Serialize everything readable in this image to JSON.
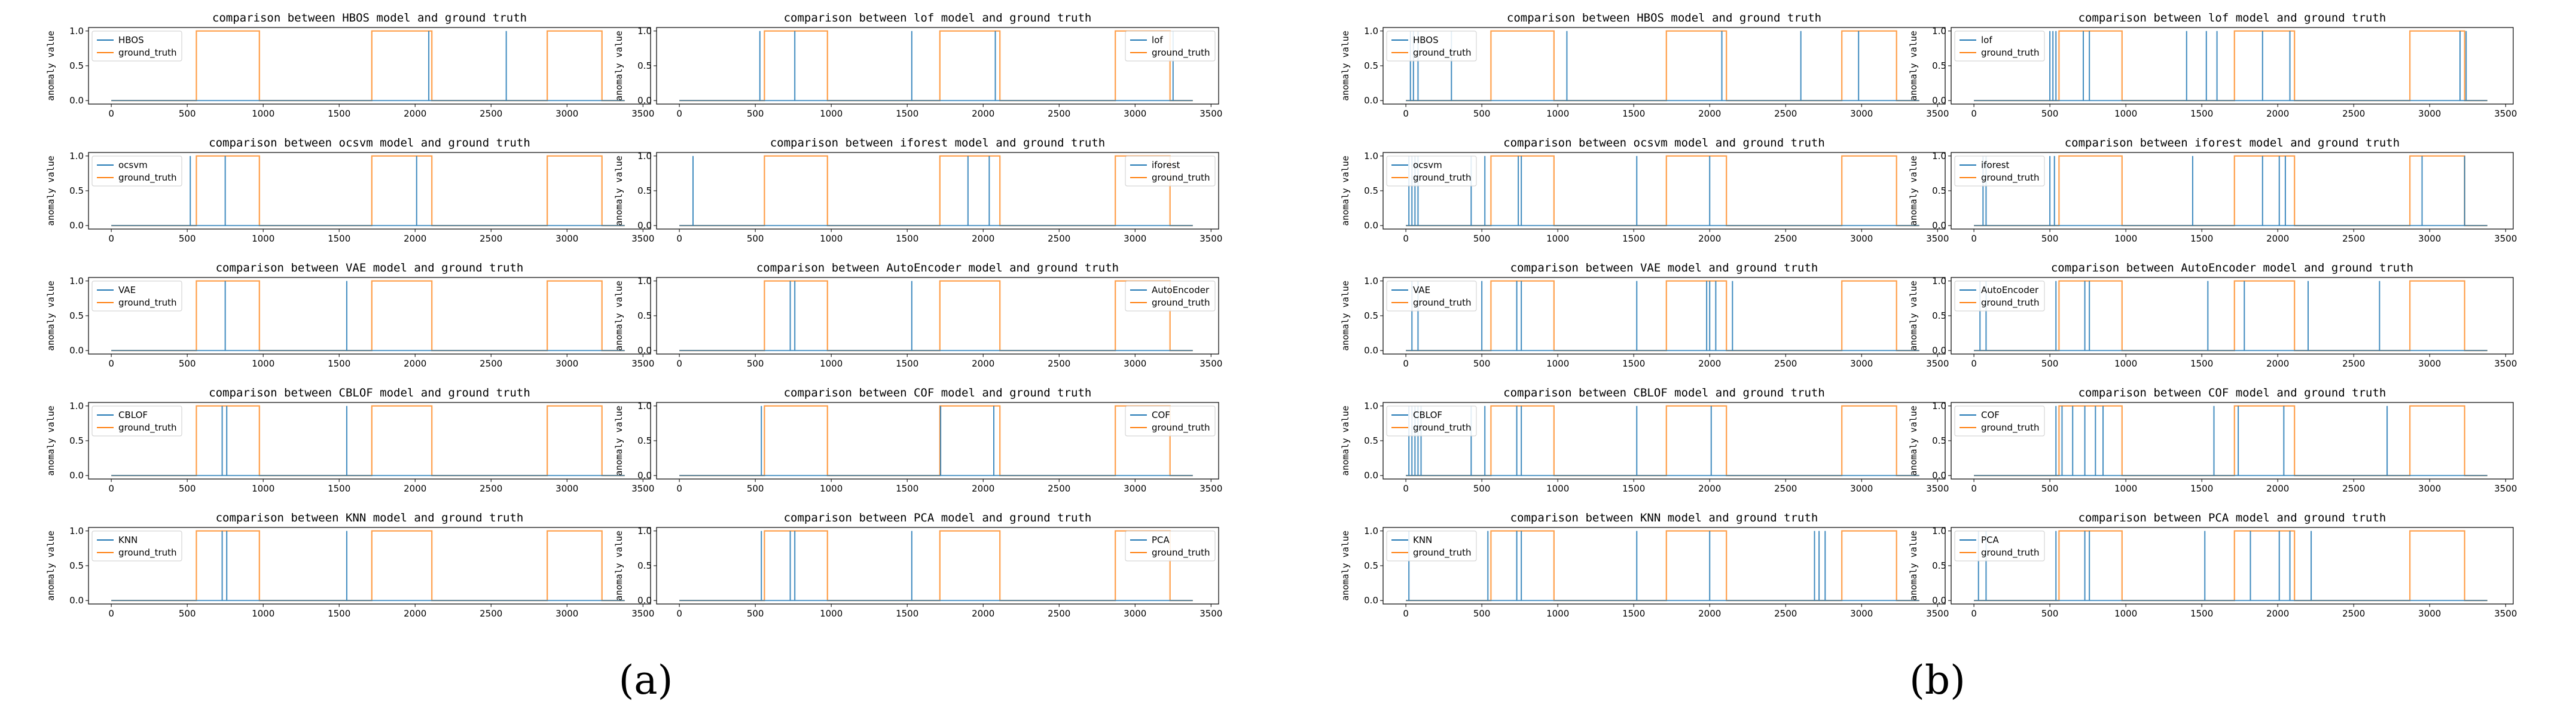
{
  "colors": {
    "model": "#1f77b4",
    "truth": "#ff7f0e",
    "axis": "#000000"
  },
  "y_axis_label": "anomaly value",
  "truth_label": "ground_truth",
  "truth_segments": [
    [
      560,
      975
    ],
    [
      1715,
      2110
    ],
    [
      2870,
      3230
    ]
  ],
  "panel_labels": [
    "(a)",
    "(b)"
  ],
  "chart_data": [
    {
      "figure": "a",
      "type": "line",
      "xlim": [
        -150,
        3550
      ],
      "ylim": [
        -0.05,
        1.05
      ],
      "xticks": [
        0,
        500,
        1000,
        1500,
        2000,
        2500,
        3000,
        3500
      ],
      "yticks": [
        0.0,
        0.5,
        1.0
      ],
      "subplots": [
        {
          "model": "HBOS",
          "title": "comparison between HBOS model and ground truth",
          "spikes": [
            2090,
            2600
          ]
        },
        {
          "model": "lof",
          "title": "comparison between lof model and ground truth",
          "spikes": [
            530,
            760,
            1530,
            2080,
            3250
          ]
        },
        {
          "model": "ocsvm",
          "title": "comparison between ocsvm model and ground truth",
          "spikes": [
            520,
            750,
            2010
          ]
        },
        {
          "model": "iforest",
          "title": "comparison between iforest model and ground truth",
          "spikes": [
            90,
            1900,
            2040
          ]
        },
        {
          "model": "VAE",
          "title": "comparison between VAE model and ground truth",
          "spikes": [
            750,
            1550
          ]
        },
        {
          "model": "AutoEncoder",
          "title": "comparison between AutoEncoder model and ground truth",
          "spikes": [
            730,
            760,
            1530
          ]
        },
        {
          "model": "CBLOF",
          "title": "comparison between CBLOF model and ground truth",
          "spikes": [
            730,
            760,
            1550
          ]
        },
        {
          "model": "COF",
          "title": "comparison between COF model and ground truth",
          "spikes": [
            540,
            1720,
            2070
          ]
        },
        {
          "model": "KNN",
          "title": "comparison between KNN model and ground truth",
          "spikes": [
            730,
            760,
            1550
          ]
        },
        {
          "model": "PCA",
          "title": "comparison between PCA model and ground truth",
          "spikes": [
            540,
            730,
            760,
            1530
          ]
        }
      ]
    },
    {
      "figure": "b",
      "type": "line",
      "xlim": [
        -150,
        3550
      ],
      "ylim": [
        -0.05,
        1.05
      ],
      "xticks": [
        0,
        500,
        1000,
        1500,
        2000,
        2500,
        3000,
        3500
      ],
      "yticks": [
        0.0,
        0.5,
        1.0
      ],
      "subplots": [
        {
          "model": "HBOS",
          "title": "comparison between HBOS model and ground truth",
          "spikes": [
            30,
            50,
            80,
            300,
            1060,
            2080,
            2600,
            2980
          ]
        },
        {
          "model": "lof",
          "title": "comparison between lof model and ground truth",
          "spikes": [
            500,
            520,
            540,
            720,
            760,
            1400,
            1530,
            1600,
            1900,
            2080,
            3200,
            3240
          ]
        },
        {
          "model": "ocsvm",
          "title": "comparison between ocsvm model and ground truth",
          "spikes": [
            20,
            40,
            60,
            80,
            430,
            520,
            740,
            760,
            1520,
            2000
          ]
        },
        {
          "model": "iforest",
          "title": "comparison between iforest model and ground truth",
          "spikes": [
            60,
            80,
            500,
            530,
            1440,
            1900,
            2010,
            2050,
            2950,
            3230
          ]
        },
        {
          "model": "VAE",
          "title": "comparison between VAE model and ground truth",
          "spikes": [
            40,
            80,
            500,
            730,
            760,
            1520,
            1980,
            2000,
            2040,
            2150
          ]
        },
        {
          "model": "AutoEncoder",
          "title": "comparison between AutoEncoder model and ground truth",
          "spikes": [
            40,
            80,
            540,
            730,
            760,
            1540,
            1780,
            2200,
            2670
          ]
        },
        {
          "model": "CBLOF",
          "title": "comparison between CBLOF model and ground truth",
          "spikes": [
            20,
            40,
            60,
            80,
            100,
            430,
            520,
            730,
            760,
            1520,
            2010
          ]
        },
        {
          "model": "COF",
          "title": "comparison between COF model and ground truth",
          "spikes": [
            540,
            580,
            650,
            730,
            800,
            850,
            1580,
            1740,
            2040,
            2720
          ]
        },
        {
          "model": "KNN",
          "title": "comparison between KNN model and ground truth",
          "spikes": [
            20,
            540,
            730,
            760,
            1520,
            2000,
            2690,
            2720,
            2760
          ]
        },
        {
          "model": "PCA",
          "title": "comparison between PCA model and ground truth",
          "spikes": [
            30,
            80,
            540,
            730,
            760,
            1520,
            1820,
            2010,
            2080,
            2220
          ]
        }
      ]
    }
  ]
}
